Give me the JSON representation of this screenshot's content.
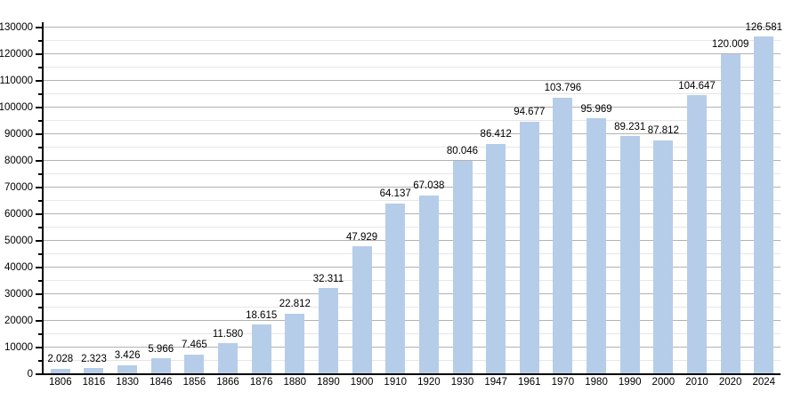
{
  "chart_data": {
    "type": "bar",
    "categories": [
      "1806",
      "1816",
      "1830",
      "1846",
      "1856",
      "1866",
      "1876",
      "1880",
      "1890",
      "1900",
      "1910",
      "1920",
      "1930",
      "1947",
      "1961",
      "1970",
      "1980",
      "1990",
      "2000",
      "2010",
      "2020",
      "2024"
    ],
    "values": [
      2028,
      2323,
      3426,
      5966,
      7465,
      11580,
      18615,
      22812,
      32311,
      47929,
      64137,
      67038,
      80046,
      86412,
      94677,
      103796,
      95969,
      89231,
      87812,
      104647,
      120009,
      126581
    ],
    "value_labels": [
      "2.028",
      "2.323",
      "3.426",
      "5.966",
      "7.465",
      "11.580",
      "18.615",
      "22.812",
      "32.311",
      "47.929",
      "64.137",
      "67.038",
      "80.046",
      "86.412",
      "94.677",
      "103.796",
      "95.969",
      "89.231",
      "87.812",
      "104.647",
      "120.009",
      "126.581"
    ],
    "xlabel": "",
    "ylabel": "",
    "ylim": [
      0,
      130000
    ],
    "y_major_step": 10000,
    "y_minor_step": 5000,
    "y_tick_labels": [
      "0",
      "10000",
      "20000",
      "30000",
      "40000",
      "50000",
      "60000",
      "70000",
      "80000",
      "90000",
      "100000",
      "110000",
      "120000",
      "130000"
    ],
    "grid": "on",
    "legend": "none",
    "colors": {
      "bar": "#b5cde9",
      "major_grid": "#b2b2b2",
      "minor_grid": "#e6e6e6",
      "axis": "#000000",
      "text": "#000000",
      "background": "#ffffff"
    }
  }
}
